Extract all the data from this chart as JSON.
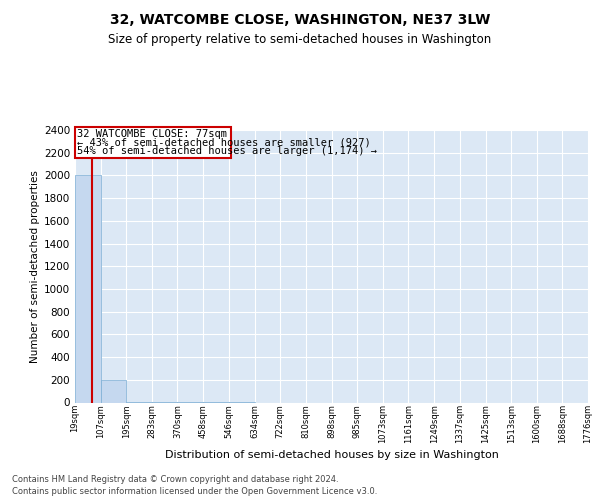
{
  "title": "32, WATCOMBE CLOSE, WASHINGTON, NE37 3LW",
  "subtitle": "Size of property relative to semi-detached houses in Washington",
  "xlabel": "Distribution of semi-detached houses by size in Washington",
  "ylabel": "Number of semi-detached properties",
  "property_size": 77,
  "property_label": "32 WATCOMBE CLOSE: 77sqm",
  "annotation_line1": "← 43% of semi-detached houses are smaller (927)",
  "annotation_line2": "54% of semi-detached houses are larger (1,174) →",
  "footer_line1": "Contains HM Land Registry data © Crown copyright and database right 2024.",
  "footer_line2": "Contains public sector information licensed under the Open Government Licence v3.0.",
  "bar_color": "#c5d8ef",
  "bar_edge_color": "#7badd4",
  "vline_color": "#cc0000",
  "annotation_box_color": "#cc0000",
  "bg_color": "#dce8f5",
  "ylim": [
    0,
    2400
  ],
  "bin_edges": [
    19,
    107,
    195,
    283,
    370,
    458,
    546,
    634,
    722,
    810,
    898,
    985,
    1073,
    1161,
    1249,
    1337,
    1425,
    1513,
    1600,
    1688,
    1776
  ],
  "bin_labels": [
    "19sqm",
    "107sqm",
    "195sqm",
    "283sqm",
    "370sqm",
    "458sqm",
    "546sqm",
    "634sqm",
    "722sqm",
    "810sqm",
    "898sqm",
    "985sqm",
    "1073sqm",
    "1161sqm",
    "1249sqm",
    "1337sqm",
    "1425sqm",
    "1513sqm",
    "1600sqm",
    "1688sqm",
    "1776sqm"
  ],
  "bar_heights": [
    2000,
    200,
    5,
    2,
    1,
    1,
    1,
    0,
    0,
    0,
    0,
    0,
    0,
    0,
    0,
    0,
    0,
    0,
    0,
    0
  ]
}
